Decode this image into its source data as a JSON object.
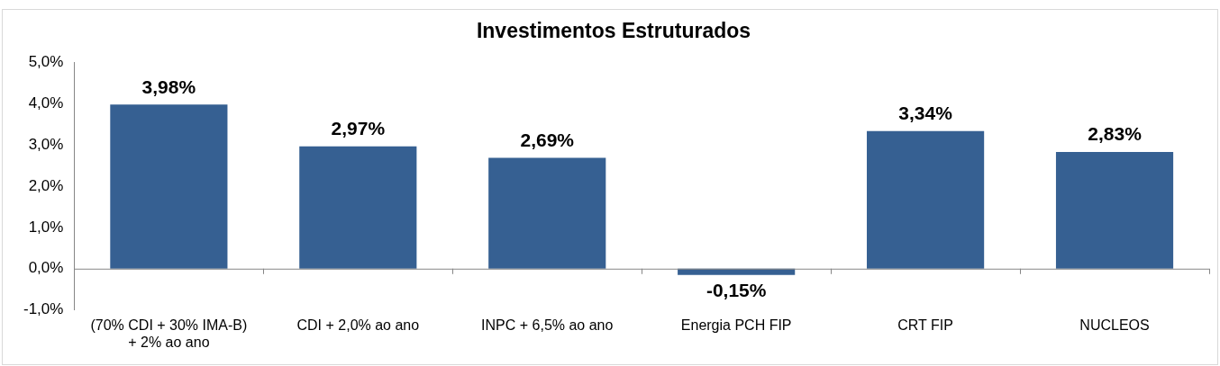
{
  "chart_data": {
    "type": "bar",
    "title": "Investimentos Estruturados",
    "categories": [
      "(70% CDI + 30% IMA-B) + 2% ao ano",
      "CDI + 2,0% ao ano",
      "INPC + 6,5% ao ano",
      "Energia PCH FIP",
      "CRT FIP",
      "NUCLEOS"
    ],
    "values": [
      3.98,
      2.97,
      2.69,
      -0.15,
      3.34,
      2.83
    ],
    "value_labels": [
      "3,98%",
      "2,97%",
      "2,69%",
      "-0,15%",
      "3,34%",
      "2,83%"
    ],
    "color": "#366092",
    "ylim": [
      -1,
      5
    ],
    "yticks": [
      {
        "value": -1,
        "label": "-1,0%"
      },
      {
        "value": 0,
        "label": "0,0%"
      },
      {
        "value": 1,
        "label": "1,0%"
      },
      {
        "value": 2,
        "label": "2,0%"
      },
      {
        "value": 3,
        "label": "3,0%"
      },
      {
        "value": 4,
        "label": "4,0%"
      },
      {
        "value": 5,
        "label": "5,0%"
      }
    ],
    "legend": false
  }
}
